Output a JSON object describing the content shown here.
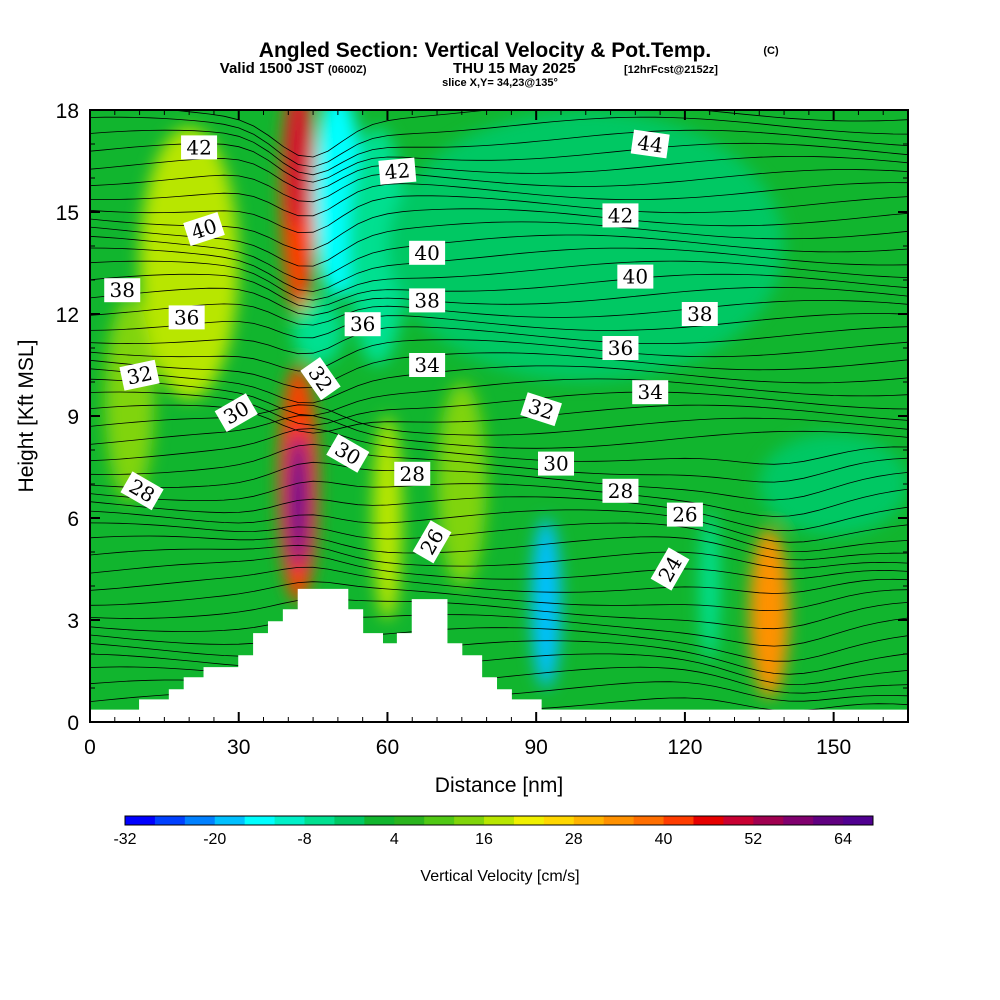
{
  "header": {
    "title": "Angled Section: Vertical Velocity & Pot.Temp.",
    "title_mark": "(C)",
    "valid_prefix": "Valid 1500 JST",
    "valid_utc": "(0600Z)",
    "valid_date": "THU 15 May 2025",
    "forecast": "[12hrFcst@2152z]",
    "slice": "slice X,Y= 34,23@135°"
  },
  "chart_data": {
    "type": "heatmap",
    "xlabel": "Distance [nm]",
    "ylabel": "Height [Kft MSL]",
    "xlim": [
      0,
      165
    ],
    "ylim": [
      0,
      18
    ],
    "x_ticks": [
      0,
      30,
      60,
      90,
      120,
      150
    ],
    "y_ticks": [
      0,
      3,
      6,
      9,
      12,
      15,
      18
    ],
    "background_color": "#11b52e",
    "terrain_profile": [
      {
        "x": 0,
        "h": 0.35
      },
      {
        "x": 10,
        "h": 0.35
      },
      {
        "x": 10,
        "h": 0.65
      },
      {
        "x": 16,
        "h": 0.65
      },
      {
        "x": 16,
        "h": 0.95
      },
      {
        "x": 19,
        "h": 0.95
      },
      {
        "x": 19,
        "h": 1.3
      },
      {
        "x": 23,
        "h": 1.3
      },
      {
        "x": 23,
        "h": 1.6
      },
      {
        "x": 30,
        "h": 1.6
      },
      {
        "x": 30,
        "h": 1.95
      },
      {
        "x": 33,
        "h": 1.95
      },
      {
        "x": 33,
        "h": 2.6
      },
      {
        "x": 36,
        "h": 2.6
      },
      {
        "x": 36,
        "h": 2.95
      },
      {
        "x": 39,
        "h": 2.95
      },
      {
        "x": 39,
        "h": 3.3
      },
      {
        "x": 42,
        "h": 3.3
      },
      {
        "x": 42,
        "h": 3.9
      },
      {
        "x": 52,
        "h": 3.9
      },
      {
        "x": 52,
        "h": 3.3
      },
      {
        "x": 55,
        "h": 3.3
      },
      {
        "x": 55,
        "h": 2.6
      },
      {
        "x": 59,
        "h": 2.6
      },
      {
        "x": 59,
        "h": 2.3
      },
      {
        "x": 62,
        "h": 2.3
      },
      {
        "x": 62,
        "h": 2.6
      },
      {
        "x": 65,
        "h": 2.6
      },
      {
        "x": 65,
        "h": 3.6
      },
      {
        "x": 72,
        "h": 3.6
      },
      {
        "x": 72,
        "h": 2.3
      },
      {
        "x": 75,
        "h": 2.3
      },
      {
        "x": 75,
        "h": 1.95
      },
      {
        "x": 79,
        "h": 1.95
      },
      {
        "x": 79,
        "h": 1.3
      },
      {
        "x": 82,
        "h": 1.3
      },
      {
        "x": 82,
        "h": 0.95
      },
      {
        "x": 85,
        "h": 0.95
      },
      {
        "x": 85,
        "h": 0.65
      },
      {
        "x": 91,
        "h": 0.65
      },
      {
        "x": 91,
        "h": 0.35
      },
      {
        "x": 165,
        "h": 0.35
      }
    ],
    "velocity_cells": [
      {
        "x": 42,
        "y": 15.5,
        "rx": 3.5,
        "ry": 3.5,
        "value": 40
      },
      {
        "x": 42,
        "y": 16.5,
        "rx": 2,
        "ry": 2,
        "value": 48
      },
      {
        "x": 42,
        "y": 7.0,
        "rx": 4,
        "ry": 3.5,
        "value": 40
      },
      {
        "x": 42,
        "y": 6.5,
        "rx": 2,
        "ry": 2,
        "value": 64
      },
      {
        "x": 50,
        "y": 15.5,
        "rx": 5,
        "ry": 3,
        "value": -16
      },
      {
        "x": 58,
        "y": 14,
        "rx": 6,
        "ry": 3.5,
        "value": -8
      },
      {
        "x": 46,
        "y": 11.5,
        "rx": 5,
        "ry": 1,
        "value": -8
      },
      {
        "x": 92,
        "y": 3.5,
        "rx": 3,
        "ry": 2.5,
        "value": -20
      },
      {
        "x": 137,
        "y": 3.2,
        "rx": 4,
        "ry": 2.5,
        "value": 32
      },
      {
        "x": 125,
        "y": 4.0,
        "rx": 2,
        "ry": 2.2,
        "value": -8
      },
      {
        "x": 20,
        "y": 13.5,
        "rx": 10,
        "ry": 4,
        "value": 16
      },
      {
        "x": 8,
        "y": 9.5,
        "rx": 5,
        "ry": 3,
        "value": 12
      },
      {
        "x": 100,
        "y": 14,
        "rx": 40,
        "ry": 4,
        "value": -4
      },
      {
        "x": 75,
        "y": 7,
        "rx": 5,
        "ry": 3,
        "value": 12
      },
      {
        "x": 60,
        "y": 6,
        "rx": 3,
        "ry": 3,
        "value": 16
      },
      {
        "x": 150,
        "y": 7,
        "rx": 15,
        "ry": 1.5,
        "value": -4
      }
    ],
    "potential_temperature_labels": [
      {
        "text": "42",
        "x": 22,
        "y": 16.9,
        "angle": 0
      },
      {
        "text": "42",
        "x": 62,
        "y": 16.2,
        "angle": -5
      },
      {
        "text": "44",
        "x": 113,
        "y": 17.0,
        "angle": 8
      },
      {
        "text": "40",
        "x": 23,
        "y": 14.5,
        "angle": -18
      },
      {
        "text": "40",
        "x": 68,
        "y": 13.8,
        "angle": 0
      },
      {
        "text": "42",
        "x": 107,
        "y": 14.9,
        "angle": 0
      },
      {
        "text": "40",
        "x": 110,
        "y": 13.1,
        "angle": 0
      },
      {
        "text": "38",
        "x": 6.5,
        "y": 12.7,
        "angle": 0
      },
      {
        "text": "36",
        "x": 19.5,
        "y": 11.9,
        "angle": 0
      },
      {
        "text": "36",
        "x": 55,
        "y": 11.7,
        "angle": 0
      },
      {
        "text": "38",
        "x": 68,
        "y": 12.4,
        "angle": 0
      },
      {
        "text": "38",
        "x": 123,
        "y": 12.0,
        "angle": 0
      },
      {
        "text": "36",
        "x": 107,
        "y": 11.0,
        "angle": 0
      },
      {
        "text": "34",
        "x": 68,
        "y": 10.5,
        "angle": 0
      },
      {
        "text": "34",
        "x": 113,
        "y": 9.7,
        "angle": 0
      },
      {
        "text": "32",
        "x": 10,
        "y": 10.2,
        "angle": -12
      },
      {
        "text": "32",
        "x": 46.5,
        "y": 10.1,
        "angle": 55
      },
      {
        "text": "32",
        "x": 91,
        "y": 9.2,
        "angle": 18
      },
      {
        "text": "30",
        "x": 29.5,
        "y": 9.1,
        "angle": -30
      },
      {
        "text": "30",
        "x": 52,
        "y": 7.9,
        "angle": 30
      },
      {
        "text": "30",
        "x": 94,
        "y": 7.6,
        "angle": 0
      },
      {
        "text": "28",
        "x": 10.5,
        "y": 6.8,
        "angle": 30
      },
      {
        "text": "28",
        "x": 65,
        "y": 7.3,
        "angle": 0
      },
      {
        "text": "28",
        "x": 107,
        "y": 6.8,
        "angle": 0
      },
      {
        "text": "26",
        "x": 69,
        "y": 5.3,
        "angle": -60
      },
      {
        "text": "26",
        "x": 120,
        "y": 6.1,
        "angle": 0
      },
      {
        "text": "24",
        "x": 117,
        "y": 4.5,
        "angle": -60
      }
    ]
  },
  "colorbar": {
    "title": "Vertical Velocity [cm/s]",
    "tick_labels": [
      "-32",
      "-20",
      "-8",
      "4",
      "16",
      "28",
      "40",
      "52",
      "64"
    ],
    "min": -32,
    "max": 68,
    "step": 4,
    "colors": [
      "#0000ff",
      "#0040ff",
      "#0080ff",
      "#00c0ff",
      "#00ffff",
      "#00f0c8",
      "#00e090",
      "#00c864",
      "#11b52e",
      "#2ab41e",
      "#50c814",
      "#80d40a",
      "#b8e600",
      "#f0f000",
      "#ffd700",
      "#ffb400",
      "#ff9100",
      "#ff6e00",
      "#ff3c00",
      "#e60000",
      "#c80032",
      "#a00050",
      "#80006e",
      "#600080",
      "#500090"
    ]
  }
}
